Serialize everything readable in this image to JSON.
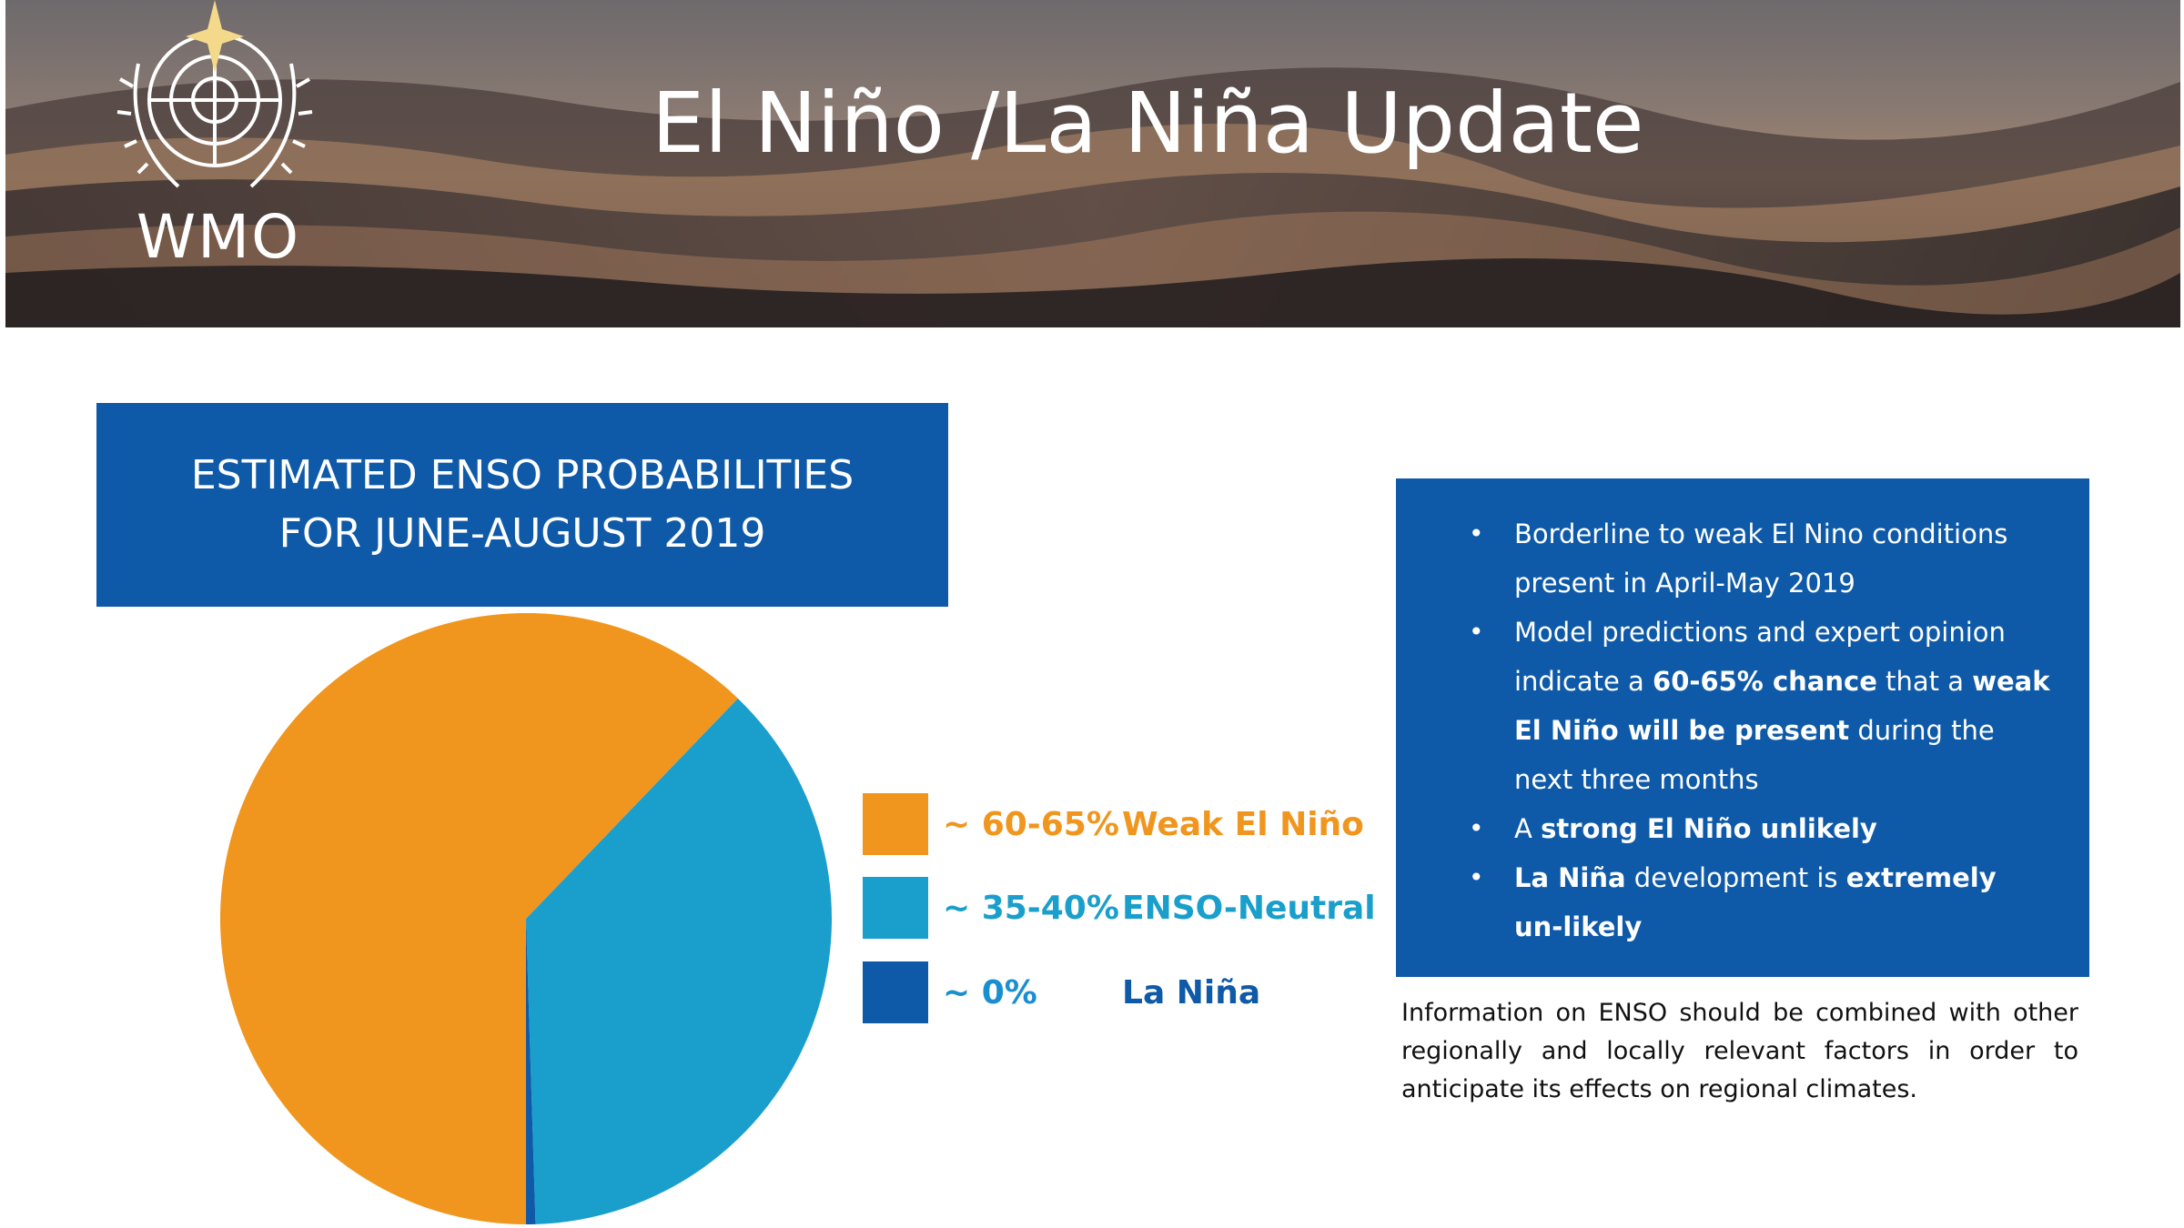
{
  "banner": {
    "title": "El Niño /La Niña Update",
    "logo_text": "WMO",
    "logo_icon": "un-wmo-emblem-icon"
  },
  "chart_title": {
    "line1": "ESTIMATED ENSO PROBABILITIES",
    "line2": "FOR JUNE-AUGUST 2019"
  },
  "chart_data": {
    "type": "pie",
    "categories": [
      "Weak El Niño",
      "ENSO-Neutral",
      "La Niña"
    ],
    "values": [
      62.5,
      37.5,
      0.5
    ],
    "value_labels": [
      "~ 60-65%",
      "~ 35-40%",
      "~ 0%"
    ],
    "colors": [
      "#f0961e",
      "#1a9fcc",
      "#0f5aa8"
    ],
    "legend_position": "right"
  },
  "info": {
    "bullets": [
      [
        {
          "t": "Borderline to weak El Nino conditions present in April-May 2019",
          "b": false
        }
      ],
      [
        {
          "t": "Model predictions and expert opinion indicate a ",
          "b": false
        },
        {
          "t": "60-65% chance",
          "b": true
        },
        {
          "t": " that a ",
          "b": false
        },
        {
          "t": "weak El Niño will be present",
          "b": true
        },
        {
          "t": " during the next three months",
          "b": false
        }
      ],
      [
        {
          "t": "A ",
          "b": false
        },
        {
          "t": "strong El Niño unlikely",
          "b": true
        }
      ],
      [
        {
          "t": "La Niña",
          "b": true
        },
        {
          "t": " development is ",
          "b": false
        },
        {
          "t": "extremely un-likely",
          "b": true
        }
      ]
    ],
    "note": "Information on ENSO should be combined with other regionally and locally relevant factors in order to anticipate its effects on regional climates."
  },
  "colors": {
    "box_blue": "#0f5aa8",
    "orange": "#f0961e",
    "cyan": "#1a9fcc"
  }
}
